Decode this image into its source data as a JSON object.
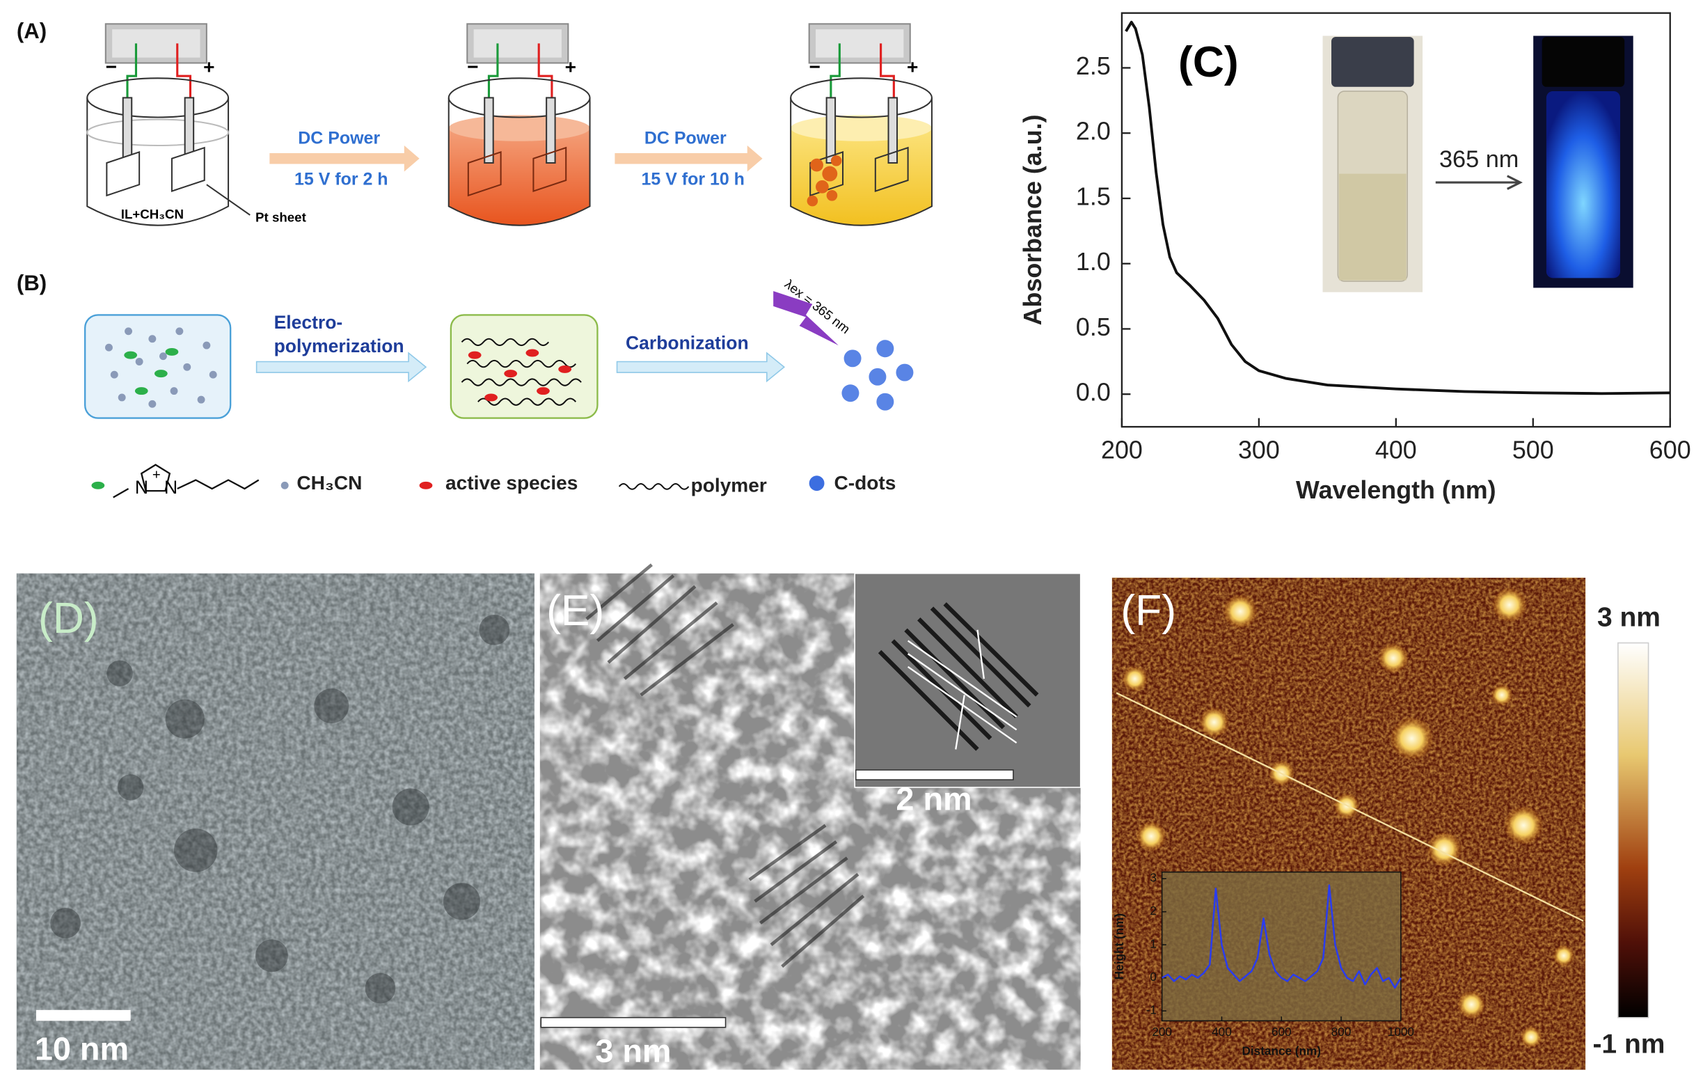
{
  "panel_a": {
    "label": "(A)",
    "step1": {
      "line1": "DC Power",
      "line2": "15 V for 2 h"
    },
    "step2": {
      "line1": "DC Power",
      "line2": "15 V for 10 h"
    },
    "electrolyte": "IL+CH₃CN",
    "electrode": "Pt sheet",
    "minus": "−",
    "plus": "+"
  },
  "panel_b": {
    "label": "(B)",
    "step1": [
      "Electro-",
      "polymerization"
    ],
    "step2": "Carbonization",
    "excitation": "λex = 365 nm",
    "legend": {
      "atom": "N",
      "charge": "+",
      "solvent": "CH₃CN",
      "active": "active species",
      "polymer": "polymer",
      "dots": "C-dots"
    }
  },
  "chart_data": [
    {
      "type": "line",
      "panel_label": "(C)",
      "xlabel": "Wavelength (nm)",
      "ylabel": "Absorbance (a.u.)",
      "inset_label": "365 nm",
      "x": [
        203,
        207,
        210,
        215,
        220,
        225,
        230,
        235,
        240,
        250,
        260,
        270,
        280,
        290,
        300,
        320,
        350,
        400,
        450,
        500,
        550,
        600
      ],
      "values": [
        2.78,
        2.85,
        2.8,
        2.6,
        2.2,
        1.7,
        1.3,
        1.05,
        0.93,
        0.83,
        0.72,
        0.58,
        0.38,
        0.25,
        0.18,
        0.12,
        0.07,
        0.04,
        0.02,
        0.01,
        0.005,
        0.01
      ],
      "color": "#111111",
      "xlim": [
        200,
        600
      ],
      "ylim": [
        -0.25,
        2.92
      ],
      "xticks": [
        200,
        300,
        400,
        500,
        600
      ],
      "yticks": [
        {
          "value": 0,
          "label": "0.0"
        },
        0.5,
        {
          "value": 1,
          "label": "1.0"
        },
        1.5,
        {
          "value": 2,
          "label": "2.0"
        },
        2.5
      ]
    },
    {
      "type": "line",
      "xlabel": "Distance (nm)",
      "ylabel": "Height (nm)",
      "x": [
        200,
        220,
        240,
        260,
        280,
        300,
        320,
        340,
        360,
        380,
        400,
        420,
        440,
        460,
        480,
        500,
        520,
        540,
        560,
        580,
        600,
        620,
        640,
        660,
        680,
        700,
        720,
        740,
        760,
        780,
        800,
        820,
        840,
        860,
        880,
        900,
        920,
        940,
        960,
        980,
        1000
      ],
      "values": [
        0.0,
        0.1,
        -0.1,
        0.05,
        -0.05,
        0.1,
        0.0,
        0.15,
        0.4,
        2.7,
        1.0,
        0.3,
        0.1,
        -0.1,
        0.05,
        0.2,
        0.6,
        1.8,
        0.7,
        0.2,
        0.0,
        -0.1,
        0.1,
        0.0,
        -0.1,
        0.05,
        0.2,
        0.6,
        2.8,
        1.0,
        0.3,
        0.0,
        -0.1,
        0.2,
        -0.2,
        0.1,
        0.3,
        -0.1,
        0.0,
        -0.3,
        0.0
      ],
      "color": "#2a3cf0",
      "xlim": [
        200,
        1000
      ],
      "ylim": [
        -1.3,
        3.2
      ],
      "xticks": [
        200,
        400,
        600,
        800,
        1000
      ],
      "yticks": [
        -1,
        0,
        1,
        2,
        3
      ]
    }
  ],
  "panel_d": {
    "label": "(D)",
    "scale_bar": "10 nm"
  },
  "panel_e": {
    "label": "(E)",
    "inset_scale_bar": "2 nm",
    "scale_bar": "3 nm"
  },
  "panel_f": {
    "label": "(F)",
    "colorbar_max": "3 nm",
    "colorbar_min": "-1 nm"
  }
}
